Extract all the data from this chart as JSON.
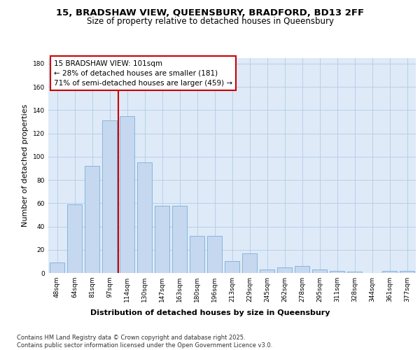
{
  "title_line1": "15, BRADSHAW VIEW, QUEENSBURY, BRADFORD, BD13 2FF",
  "title_line2": "Size of property relative to detached houses in Queensbury",
  "xlabel": "Distribution of detached houses by size in Queensbury",
  "ylabel": "Number of detached properties",
  "categories": [
    "48sqm",
    "64sqm",
    "81sqm",
    "97sqm",
    "114sqm",
    "130sqm",
    "147sqm",
    "163sqm",
    "180sqm",
    "196sqm",
    "213sqm",
    "229sqm",
    "245sqm",
    "262sqm",
    "278sqm",
    "295sqm",
    "311sqm",
    "328sqm",
    "344sqm",
    "361sqm",
    "377sqm"
  ],
  "values": [
    9,
    59,
    92,
    131,
    135,
    95,
    58,
    58,
    32,
    32,
    10,
    17,
    3,
    5,
    6,
    3,
    2,
    1,
    0,
    2,
    2
  ],
  "bar_color": "#c5d8f0",
  "bar_edge_color": "#7aaed6",
  "vline_x": 3.5,
  "vline_color": "#cc0000",
  "annotation_text": "15 BRADSHAW VIEW: 101sqm\n← 28% of detached houses are smaller (181)\n71% of semi-detached houses are larger (459) →",
  "annotation_box_color": "#ffffff",
  "annotation_box_edge": "#cc0000",
  "ylim": [
    0,
    185
  ],
  "yticks": [
    0,
    20,
    40,
    60,
    80,
    100,
    120,
    140,
    160,
    180
  ],
  "bg_color": "#deeaf8",
  "grid_color": "#b8cfe8",
  "footer": "Contains HM Land Registry data © Crown copyright and database right 2025.\nContains public sector information licensed under the Open Government Licence v3.0.",
  "title_fontsize": 9.5,
  "subtitle_fontsize": 8.5,
  "axis_label_fontsize": 8,
  "tick_fontsize": 6.5,
  "annotation_fontsize": 7.5,
  "footer_fontsize": 6.0
}
